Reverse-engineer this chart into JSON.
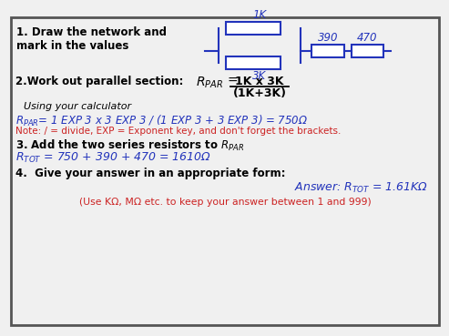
{
  "bg_color": "#f0f0f0",
  "border_color": "#555555",
  "blue": "#2233bb",
  "red": "#cc2222",
  "black": "#000000",
  "white": "#ffffff",
  "step1_line1": "1. Draw the network and",
  "step1_line2": "mark in the values",
  "label_1k": "1K",
  "label_3k": "3K",
  "label_390": "390",
  "label_470": "470",
  "step2_label": "2.Work out parallel section:",
  "rpar_label": "R",
  "rpar_sub": "PAR",
  "equals": "=",
  "frac_top": "1K x 3K",
  "frac_bot": "(1K+3K)",
  "calc_italic": "Using your calculator",
  "rpar_formula": "= 1 EXP 3 x 3 EXP 3 / (1 EXP 3 + 3 EXP 3) = 750",
  "omega": "Ω",
  "note": "Note: / = divide, EXP = Exponent key, and don't forget the brackets.",
  "step3_label": "3. Add the two series resistors to R",
  "step3_sub": "PAR",
  "step3_formula_pre": "= 750 + 390 + 470 = 1610",
  "step4_label": "4.  Give your answer in an appropriate form:",
  "answer_pre": "Answer: R",
  "answer_sub": "TOT",
  "answer_val": " = 1.61KΩ",
  "footer": "(Use KΩ, MΩ etc. to keep your answer between 1 and 999)"
}
